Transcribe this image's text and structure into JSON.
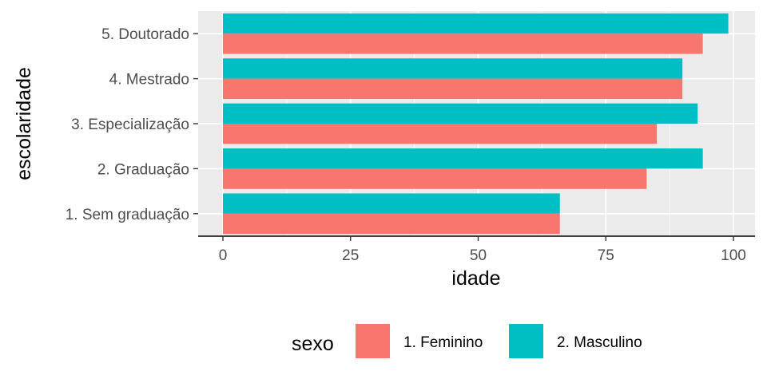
{
  "chart_data": {
    "type": "bar",
    "orientation": "horizontal",
    "categories": [
      "1. Sem graduação",
      "2. Graduação",
      "3. Especialização",
      "4. Mestrado",
      "5. Doutorado"
    ],
    "series": [
      {
        "name": "1. Feminino",
        "color": "#F8766D",
        "values": [
          66,
          83,
          85,
          90,
          94
        ]
      },
      {
        "name": "2. Masculino",
        "color": "#00BFC4",
        "values": [
          66,
          94,
          93,
          90,
          99
        ]
      }
    ],
    "xlabel": "idade",
    "ylabel": "escolaridade",
    "xticks": [
      0,
      25,
      50,
      75,
      100
    ],
    "xlim": [
      -5,
      104
    ],
    "grid": true,
    "legend": {
      "title": "sexo",
      "placement": "bottom"
    },
    "panel_color": "#EBEBEB"
  }
}
